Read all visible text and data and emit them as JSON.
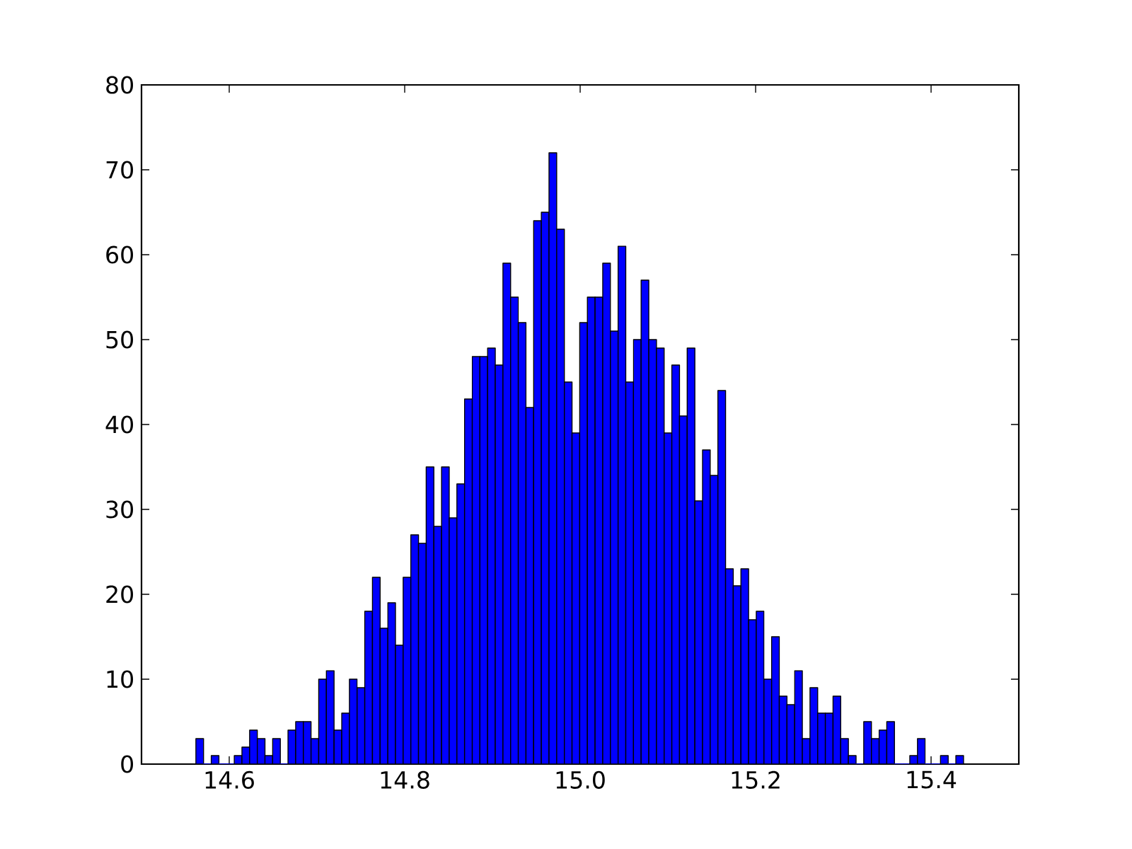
{
  "chart_data": {
    "type": "histogram",
    "color": "#0000ff",
    "bins": [
      14.562,
      14.57075,
      14.5795,
      14.58825,
      14.597,
      14.60575,
      14.6145,
      14.62325,
      14.632,
      14.64075,
      14.6495,
      14.65825,
      14.667,
      14.67575,
      14.6845,
      14.69325,
      14.702,
      14.71075,
      14.7195,
      14.72825,
      14.737,
      14.74575,
      14.7545,
      14.76325,
      14.772,
      14.78075,
      14.7895,
      14.79825,
      14.807,
      14.81575,
      14.8245,
      14.83325,
      14.842,
      14.85075,
      14.8595,
      14.86825,
      14.877,
      14.88575,
      14.8945,
      14.90325,
      14.912,
      14.92075,
      14.9295,
      14.93825,
      14.947,
      14.95575,
      14.9645,
      14.97325,
      14.982,
      14.99075,
      14.9995,
      15.00825,
      15.017,
      15.02575,
      15.0345,
      15.04325,
      15.052,
      15.06075,
      15.0695,
      15.07825,
      15.087,
      15.09575,
      15.1045,
      15.11325,
      15.122,
      15.13075,
      15.1395,
      15.14825,
      15.157,
      15.16575,
      15.1745,
      15.18325,
      15.192,
      15.20075,
      15.2095,
      15.21825,
      15.227,
      15.23575,
      15.2445,
      15.25325,
      15.262,
      15.27075,
      15.2795,
      15.28825,
      15.297,
      15.30575,
      15.3145,
      15.32325,
      15.332,
      15.34075,
      15.3495,
      15.35825,
      15.367,
      15.37575,
      15.3845,
      15.39325,
      15.402,
      15.41075,
      15.4195,
      15.42825,
      15.437
    ],
    "values": [
      3,
      0,
      1,
      0,
      0,
      1,
      2,
      4,
      3,
      1,
      3,
      0,
      4,
      5,
      5,
      3,
      10,
      11,
      4,
      6,
      10,
      9,
      18,
      22,
      16,
      19,
      14,
      22,
      27,
      26,
      35,
      28,
      35,
      29,
      33,
      43,
      48,
      48,
      49,
      47,
      59,
      55,
      52,
      42,
      64,
      65,
      72,
      63,
      45,
      39,
      52,
      55,
      55,
      59,
      51,
      61,
      45,
      50,
      57,
      50,
      49,
      39,
      47,
      41,
      49,
      31,
      37,
      34,
      44,
      23,
      21,
      23,
      17,
      18,
      10,
      15,
      8,
      7,
      11,
      3,
      9,
      6,
      6,
      8,
      3,
      1,
      0,
      5,
      3,
      4,
      5,
      0,
      0,
      1,
      3,
      0,
      0,
      1,
      0,
      1
    ],
    "xlim": [
      14.5,
      15.5
    ],
    "ylim": [
      0,
      80
    ],
    "xticks": [
      14.6,
      14.8,
      {
        "value": 15,
        "label": "15.0"
      },
      15.2,
      15.4
    ],
    "yticks": [
      0,
      10,
      20,
      30,
      40,
      50,
      60,
      70,
      80
    ]
  }
}
